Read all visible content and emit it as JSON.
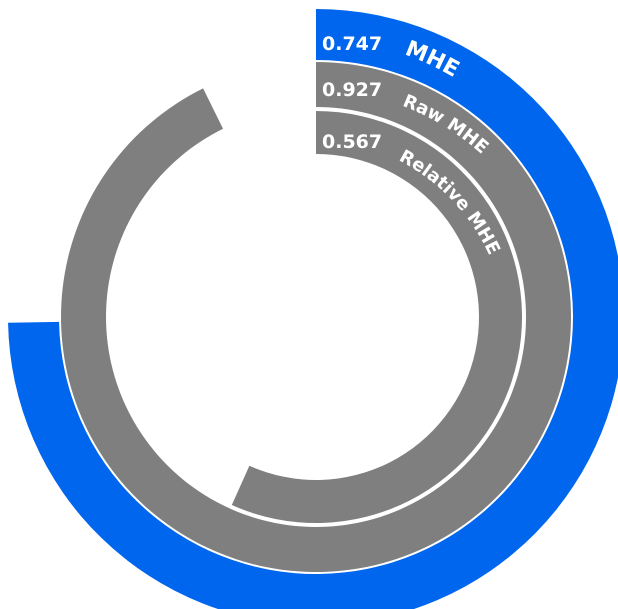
{
  "chart_data": {
    "type": "radial-bar",
    "colors": {
      "primary": "#0066ee",
      "secondary": "#7f7f7f",
      "gap": "#ffffff"
    },
    "series": [
      {
        "name": "MHE",
        "value": 0.747,
        "value_label": "0.747",
        "color": "#0066ee"
      },
      {
        "name": "Raw MHE",
        "value": 0.927,
        "value_label": "0.927",
        "color": "#7f7f7f"
      },
      {
        "name": "Relative MHE",
        "value": 0.567,
        "value_label": "0.567",
        "color": "#7f7f7f"
      }
    ],
    "max": 1
  }
}
